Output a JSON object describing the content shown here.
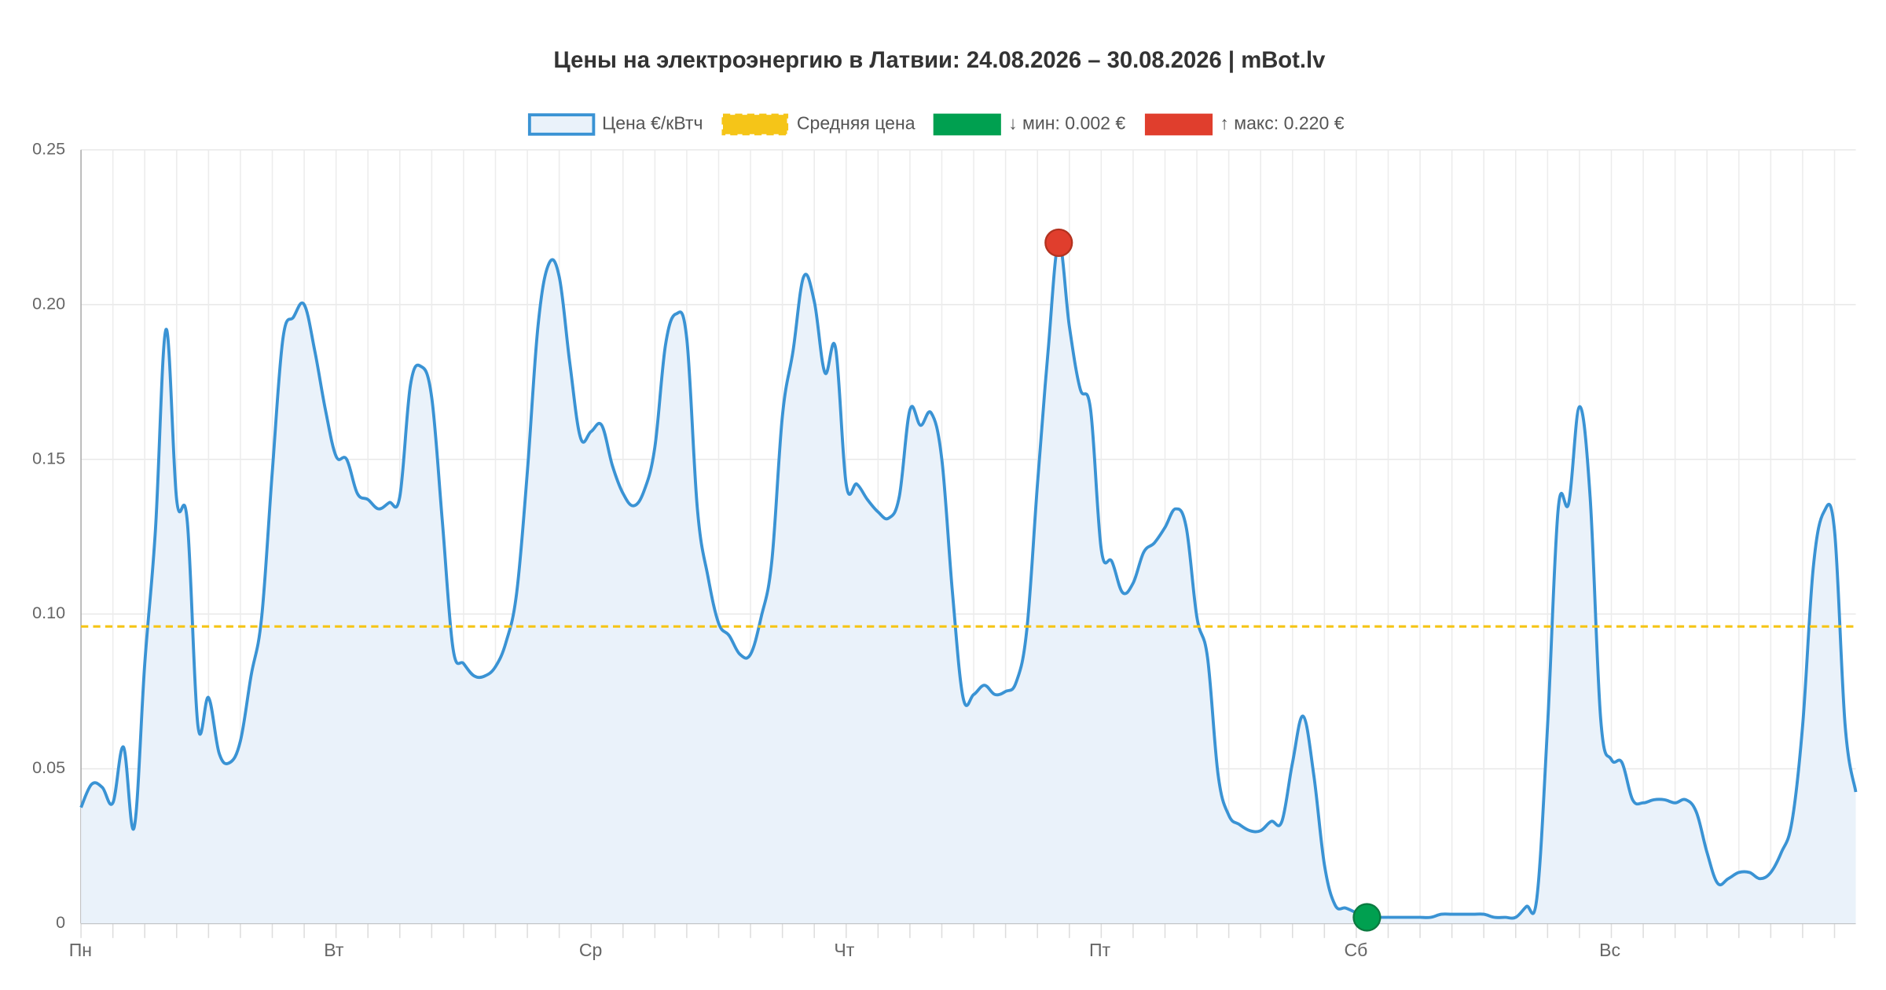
{
  "chart_data": {
    "type": "line",
    "title": "Цены на электроэнергию в Латвии: 24.08.2026 – 30.08.2026 | mBot.lv",
    "categories": [
      "Пн",
      null,
      null,
      null,
      null,
      null,
      null,
      null,
      null,
      null,
      null,
      null,
      null,
      null,
      null,
      null,
      null,
      null,
      null,
      null,
      null,
      null,
      null,
      null,
      "Вт",
      null,
      null,
      null,
      null,
      null,
      null,
      null,
      null,
      null,
      null,
      null,
      null,
      null,
      null,
      null,
      null,
      null,
      null,
      null,
      null,
      null,
      null,
      null,
      "Ср",
      null,
      null,
      null,
      null,
      null,
      null,
      null,
      null,
      null,
      null,
      null,
      null,
      null,
      null,
      null,
      null,
      null,
      null,
      null,
      null,
      null,
      null,
      null,
      "Чт",
      null,
      null,
      null,
      null,
      null,
      null,
      null,
      null,
      null,
      null,
      null,
      null,
      null,
      null,
      null,
      null,
      null,
      null,
      null,
      null,
      null,
      null,
      null,
      "Пт",
      null,
      null,
      null,
      null,
      null,
      null,
      null,
      null,
      null,
      null,
      null,
      null,
      null,
      null,
      null,
      null,
      null,
      null,
      null,
      null,
      null,
      null,
      null,
      "Сб",
      null,
      null,
      null,
      null,
      null,
      null,
      null,
      null,
      null,
      null,
      null,
      null,
      null,
      null,
      null,
      null,
      null,
      null,
      null,
      null,
      null,
      null,
      null,
      "Вс",
      null,
      null,
      null,
      null,
      null,
      null,
      null,
      null,
      null,
      null,
      null,
      null,
      null,
      null,
      null,
      null,
      null,
      null,
      null,
      null,
      null,
      null,
      null
    ],
    "series": [
      {
        "name": "Цена €/кВтч",
        "color": "#3a93d4",
        "fill": "#eaf2fa",
        "values": [
          0.0375,
          0.045,
          0.044,
          0.039,
          0.057,
          0.031,
          0.084,
          0.127,
          0.192,
          0.137,
          0.13,
          0.064,
          0.073,
          0.055,
          0.052,
          0.059,
          0.08,
          0.099,
          0.146,
          0.189,
          0.196,
          0.2,
          0.185,
          0.166,
          0.151,
          0.15,
          0.139,
          0.137,
          0.134,
          0.136,
          0.138,
          0.174,
          0.18,
          0.17,
          0.13,
          0.089,
          0.084,
          0.08,
          0.08,
          0.083,
          0.091,
          0.107,
          0.146,
          0.193,
          0.213,
          0.209,
          0.181,
          0.157,
          0.159,
          0.161,
          0.148,
          0.139,
          0.135,
          0.14,
          0.154,
          0.187,
          0.197,
          0.189,
          0.134,
          0.112,
          0.097,
          0.093,
          0.087,
          0.087,
          0.099,
          0.117,
          0.164,
          0.185,
          0.209,
          0.201,
          0.178,
          0.186,
          0.142,
          0.142,
          0.137,
          0.133,
          0.131,
          0.138,
          0.166,
          0.161,
          0.165,
          0.15,
          0.107,
          0.073,
          0.074,
          0.077,
          0.074,
          0.075,
          0.078,
          0.095,
          0.142,
          0.185,
          0.22,
          0.193,
          0.173,
          0.166,
          0.121,
          0.117,
          0.107,
          0.11,
          0.12,
          0.123,
          0.128,
          0.134,
          0.128,
          0.099,
          0.086,
          0.048,
          0.035,
          0.032,
          0.03,
          0.03,
          0.033,
          0.033,
          0.052,
          0.067,
          0.048,
          0.019,
          0.006,
          0.005,
          0.0035,
          0.002,
          0.002,
          0.002,
          0.002,
          0.002,
          0.002,
          0.002,
          0.003,
          0.003,
          0.003,
          0.003,
          0.003,
          0.002,
          0.002,
          0.002,
          0.0055,
          0.0085,
          0.064,
          0.134,
          0.136,
          0.167,
          0.138,
          0.066,
          0.053,
          0.052,
          0.04,
          0.039,
          0.04,
          0.04,
          0.039,
          0.04,
          0.036,
          0.023,
          0.013,
          0.0145,
          0.0165,
          0.0165,
          0.0145,
          0.0165,
          0.023,
          0.033,
          0.064,
          0.115,
          0.133,
          0.127,
          0.064,
          0.0425
        ]
      },
      {
        "name": "Средняя цена",
        "color": "#f5c518",
        "value": 0.096
      },
      {
        "name": "↓ мин: 0.002 €",
        "color": "#00a050",
        "value": 0.002
      },
      {
        "name": "↑ макс: 0.220 €",
        "color": "#e03e2d",
        "value": 0.22
      }
    ],
    "ylim": [
      0,
      0.25
    ],
    "yticks": [
      0,
      0.05,
      {
        "value": 0.1,
        "label": "0.10"
      },
      0.15,
      {
        "value": 0.2,
        "label": "0.20"
      },
      0.25
    ],
    "grid": true
  }
}
